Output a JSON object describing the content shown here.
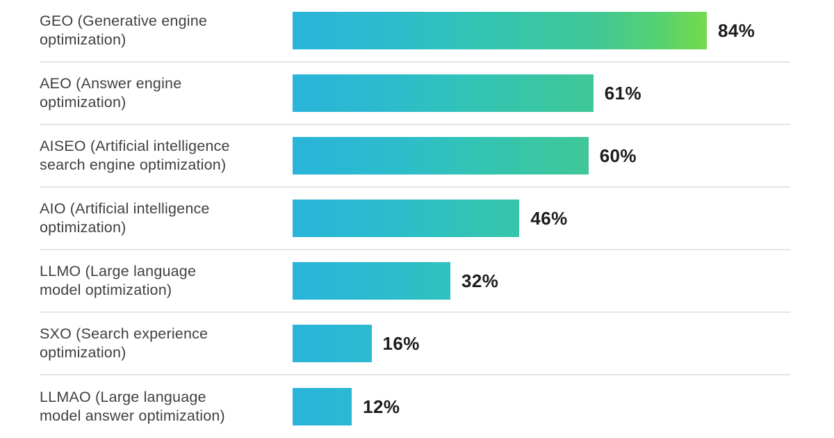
{
  "chart_data": {
    "type": "bar",
    "orientation": "horizontal",
    "title": "",
    "xlabel": "",
    "ylabel": "",
    "grid": false,
    "legend": false,
    "xlim": [
      0,
      84
    ],
    "categories": [
      "GEO (Generative engine optimization)",
      "AEO (Answer engine optimization)",
      "AISEO (Artificial intelligence search engine optimization)",
      "AIO (Artificial intelligence optimization)",
      "LLMO (Large language model optimization)",
      "SXO (Search experience optimization)",
      "LLMAO (Large language model answer optimization)"
    ],
    "label_lines": [
      [
        "GEO (Generative engine",
        "optimization)"
      ],
      [
        "AEO (Answer engine",
        "optimization)"
      ],
      [
        "AISEO (Artificial intelligence",
        "search engine optimization)"
      ],
      [
        "AIO (Artificial intelligence",
        "optimization)"
      ],
      [
        "LLMO (Large language",
        "model optimization)"
      ],
      [
        "SXO (Search experience",
        "optimization)"
      ],
      [
        "LLMAO (Large language",
        "model answer optimization)"
      ]
    ],
    "values": [
      84,
      61,
      60,
      46,
      32,
      16,
      12
    ],
    "value_labels": [
      "84%",
      "61%",
      "60%",
      "46%",
      "32%",
      "16%",
      "12%"
    ],
    "gradient_stops": [
      {
        "pos": 0,
        "color": "#29b4da"
      },
      {
        "pos": 25,
        "color": "#2cbccb"
      },
      {
        "pos": 45,
        "color": "#33c4b4"
      },
      {
        "pos": 60,
        "color": "#39c6a2"
      },
      {
        "pos": 73,
        "color": "#41c795"
      },
      {
        "pos": 88,
        "color": "#55d173"
      },
      {
        "pos": 100,
        "color": "#74da4b"
      }
    ],
    "colors": {
      "category_label": "#3f3f3f",
      "value_label": "#1c1c1c",
      "separator": "#e4e4e0",
      "background": "#ffffff"
    }
  }
}
